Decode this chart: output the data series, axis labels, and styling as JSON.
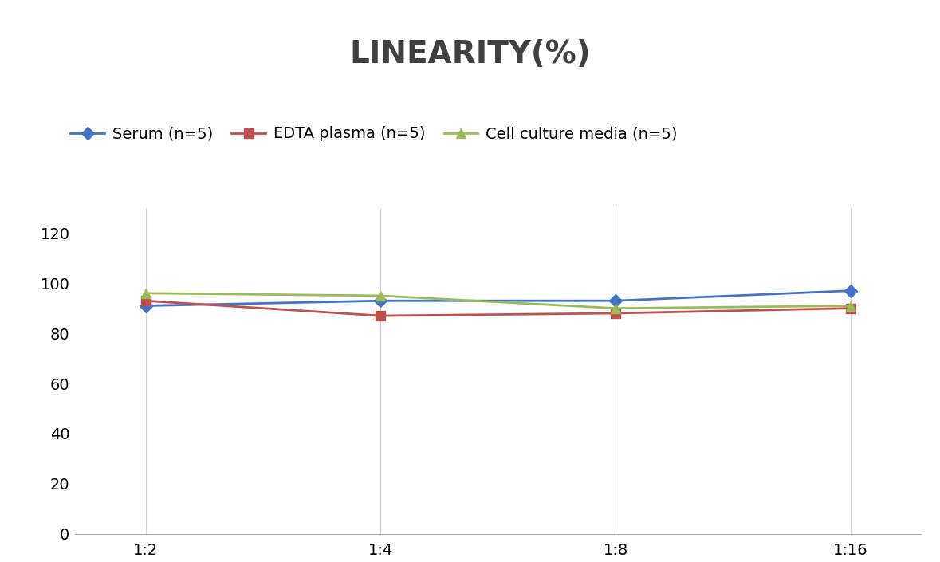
{
  "title": "LINEARITY(%)",
  "title_fontsize": 28,
  "title_fontweight": "bold",
  "title_color": "#404040",
  "x_labels": [
    "1:2",
    "1:4",
    "1:8",
    "1:16"
  ],
  "x_positions": [
    0,
    1,
    2,
    3
  ],
  "series": [
    {
      "label": "Serum (n=5)",
      "values": [
        91,
        93,
        93,
        97
      ],
      "color": "#4472C4",
      "marker": "D",
      "marker_size": 8,
      "linewidth": 2
    },
    {
      "label": "EDTA plasma (n=5)",
      "values": [
        93,
        87,
        88,
        90
      ],
      "color": "#C0504D",
      "marker": "s",
      "marker_size": 8,
      "linewidth": 2
    },
    {
      "label": "Cell culture media (n=5)",
      "values": [
        96,
        95,
        90,
        91
      ],
      "color": "#9BBB59",
      "marker": "^",
      "marker_size": 9,
      "linewidth": 2
    }
  ],
  "ylim": [
    0,
    130
  ],
  "yticks": [
    0,
    20,
    40,
    60,
    80,
    100,
    120
  ],
  "background_color": "#FFFFFF",
  "grid_color": "#D3D3D3",
  "legend_fontsize": 14,
  "axis_fontsize": 14
}
